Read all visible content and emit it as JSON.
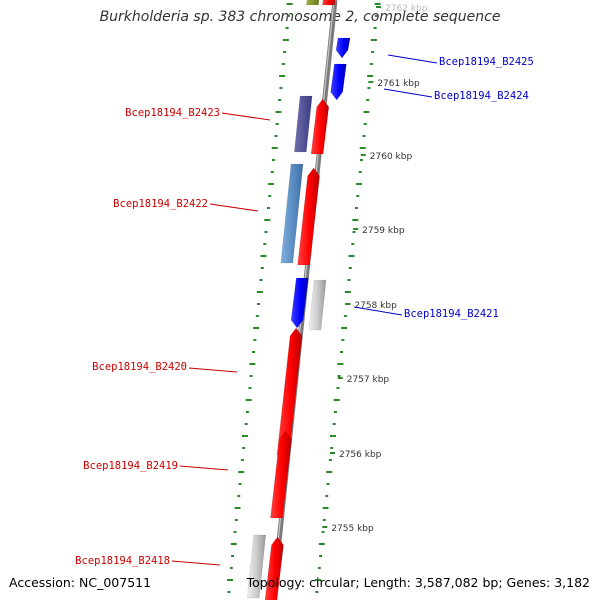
{
  "title": "Burkholderia sp. 383 chromosome 2, complete sequence",
  "footer": {
    "accession": "Accession: NC_007511",
    "topology": "Topology: circular; Length: 3,587,082 bp; Genes: 3,182"
  },
  "colors": {
    "forward_gene": "#ff0000",
    "reverse_gene": "#0000ff",
    "label_forward": "#cc0000",
    "label_reverse": "#0000cc",
    "ticks": "#2a8a2a",
    "axis": "#888888"
  },
  "ruler": [
    {
      "label": "2762 kbp",
      "kbp": 2762
    },
    {
      "label": "2761 kbp",
      "kbp": 2761
    },
    {
      "label": "2760 kbp",
      "kbp": 2760
    },
    {
      "label": "2759 kbp",
      "kbp": 2759
    },
    {
      "label": "2758 kbp",
      "kbp": 2758
    },
    {
      "label": "2757 kbp",
      "kbp": 2757
    },
    {
      "label": "2756 kbp",
      "kbp": 2756
    },
    {
      "label": "2755 kbp",
      "kbp": 2755
    }
  ],
  "genes": [
    {
      "label": "Bcep18194_B2425",
      "strand": "reverse"
    },
    {
      "label": "Bcep18194_B2424",
      "strand": "reverse"
    },
    {
      "label": "Bcep18194_B2423",
      "strand": "forward"
    },
    {
      "label": "Bcep18194_B2422",
      "strand": "forward"
    },
    {
      "label": "Bcep18194_B2421",
      "strand": "reverse"
    },
    {
      "label": "Bcep18194_B2420",
      "strand": "forward"
    },
    {
      "label": "Bcep18194_B2419",
      "strand": "forward"
    },
    {
      "label": "Bcep18194_B2418",
      "strand": "forward"
    }
  ]
}
